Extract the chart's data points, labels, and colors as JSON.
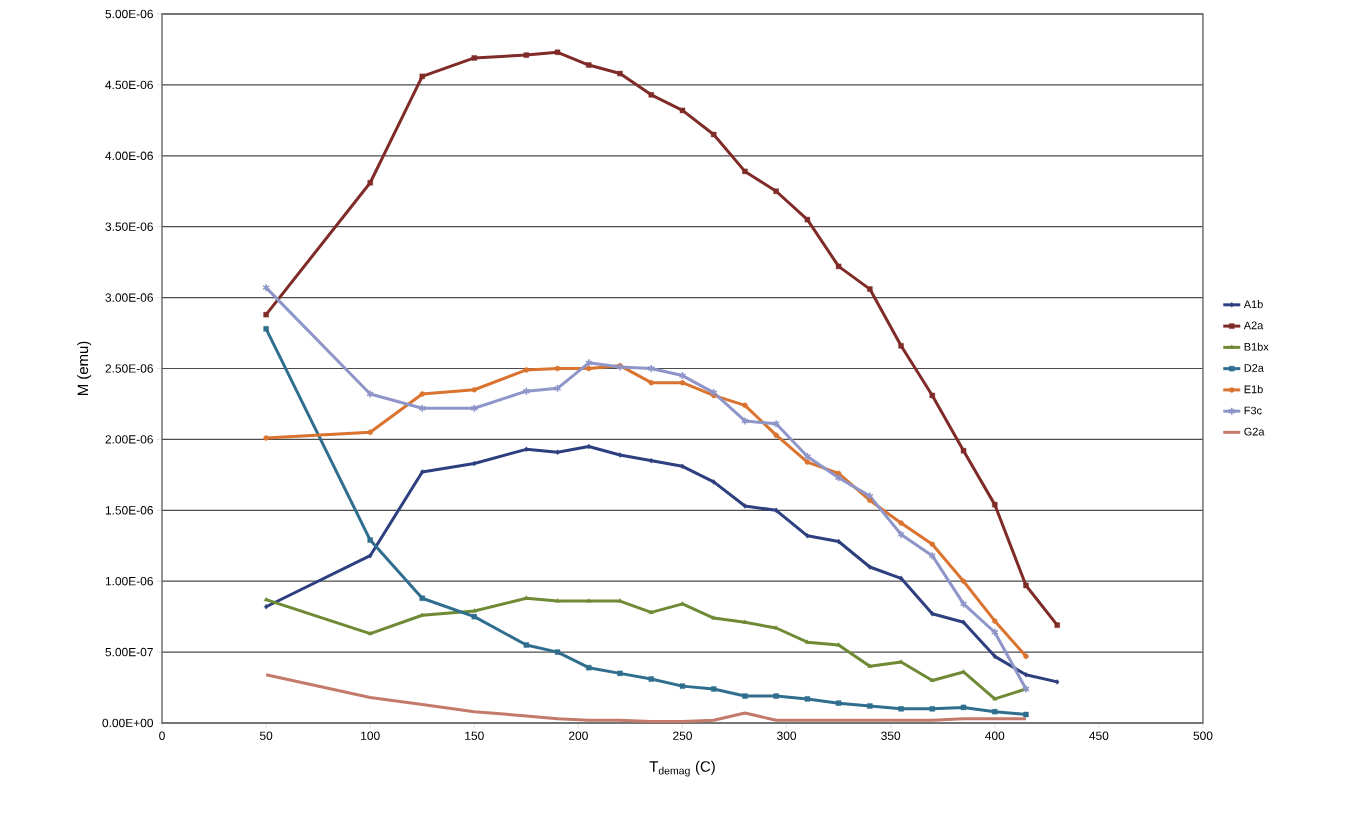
{
  "chart_data": {
    "type": "line",
    "xlabel": "T$_{demag}$ (C)",
    "ylabel": "M (emu)",
    "legend": "right",
    "grid": "y",
    "line_style": "solid",
    "xlim": [
      0,
      500
    ],
    "xticks": [
      0,
      50,
      100,
      150,
      200,
      250,
      300,
      350,
      400,
      450,
      500
    ],
    "ylim": [
      0,
      5e-06
    ],
    "yticks": [
      {
        "value": 0,
        "label": "0.00E+00"
      },
      {
        "value": 5e-07,
        "label": "5.00E-07"
      },
      {
        "value": 1e-06,
        "label": "1.00E-06"
      },
      {
        "value": 1.5e-06,
        "label": "1.50E-06"
      },
      {
        "value": 2e-06,
        "label": "2.00E-06"
      },
      {
        "value": 2.5e-06,
        "label": "2.50E-06"
      },
      {
        "value": 3e-06,
        "label": "3.00E-06"
      },
      {
        "value": 3.5e-06,
        "label": "3.50E-06"
      },
      {
        "value": 4e-06,
        "label": "4.00E-06"
      },
      {
        "value": 4.5e-06,
        "label": "4.50E-06"
      },
      {
        "value": 5e-06,
        "label": "5.00E-06"
      }
    ],
    "x": [
      50,
      100,
      125,
      150,
      175,
      190,
      205,
      220,
      235,
      250,
      265,
      280,
      295,
      310,
      325,
      340,
      355,
      370,
      385,
      400,
      415,
      430
    ],
    "series": [
      {
        "name": "A1b",
        "color": "#2e3f7f",
        "marker": "diamond",
        "values": [
          8.2e-07,
          1.18e-06,
          1.77e-06,
          1.83e-06,
          1.93e-06,
          1.91e-06,
          1.95e-06,
          1.89e-06,
          1.85e-06,
          1.81e-06,
          1.7e-06,
          1.53e-06,
          1.5e-06,
          1.32e-06,
          1.28e-06,
          1.1e-06,
          1.02e-06,
          7.7e-07,
          7.1e-07,
          4.7e-07,
          3.4e-07,
          2.9e-07
        ]
      },
      {
        "name": "A2a",
        "color": "#7f2b27",
        "marker": "square",
        "values": [
          2.88e-06,
          3.81e-06,
          4.56e-06,
          4.69e-06,
          4.71e-06,
          4.73e-06,
          4.64e-06,
          4.58e-06,
          4.43e-06,
          4.32e-06,
          4.15e-06,
          3.89e-06,
          3.75e-06,
          3.55e-06,
          3.22e-06,
          3.06e-06,
          2.66e-06,
          2.31e-06,
          1.92e-06,
          1.54e-06,
          9.7e-07,
          6.9e-07
        ]
      },
      {
        "name": "B1bx",
        "color": "#6f8a35",
        "marker": "triangle",
        "values": [
          8.7e-07,
          6.3e-07,
          7.6e-07,
          7.9e-07,
          8.8e-07,
          8.6e-07,
          8.6e-07,
          8.6e-07,
          7.8e-07,
          8.4e-07,
          7.4e-07,
          7.1e-07,
          6.7e-07,
          5.7e-07,
          5.5e-07,
          4e-07,
          4.3e-07,
          3e-07,
          3.6e-07,
          1.7e-07,
          2.4e-07,
          null
        ]
      },
      {
        "name": "D2a",
        "color": "#2f6e8e",
        "marker": "square",
        "values": [
          2.78e-06,
          1.29e-06,
          8.8e-07,
          7.5e-07,
          5.5e-07,
          5e-07,
          3.9e-07,
          3.5e-07,
          3.1e-07,
          2.6e-07,
          2.4e-07,
          1.9e-07,
          1.9e-07,
          1.7e-07,
          1.4e-07,
          1.2e-07,
          1e-07,
          1e-07,
          1.1e-07,
          8e-08,
          6e-08,
          null
        ]
      },
      {
        "name": "E1b",
        "color": "#d9732f",
        "marker": "circle",
        "values": [
          2.01e-06,
          2.05e-06,
          2.32e-06,
          2.35e-06,
          2.49e-06,
          2.5e-06,
          2.5e-06,
          2.52e-06,
          2.4e-06,
          2.4e-06,
          2.31e-06,
          2.24e-06,
          2.03e-06,
          1.84e-06,
          1.76e-06,
          1.57e-06,
          1.41e-06,
          1.26e-06,
          1e-06,
          7.2e-07,
          4.7e-07,
          null
        ]
      },
      {
        "name": "F3c",
        "color": "#8e95c8",
        "marker": "cross",
        "values": [
          3.07e-06,
          2.32e-06,
          2.22e-06,
          2.22e-06,
          2.34e-06,
          2.36e-06,
          2.54e-06,
          2.51e-06,
          2.5e-06,
          2.45e-06,
          2.33e-06,
          2.13e-06,
          2.11e-06,
          1.88e-06,
          1.73e-06,
          1.6e-06,
          1.33e-06,
          1.18e-06,
          8.4e-07,
          6.4e-07,
          2.4e-07,
          null
        ]
      },
      {
        "name": "G2a",
        "color": "#c47a6a",
        "marker": "none",
        "values": [
          3.4e-07,
          1.8e-07,
          1.3e-07,
          8e-08,
          5e-08,
          3e-08,
          2e-08,
          2e-08,
          1e-08,
          1e-08,
          2e-08,
          7e-08,
          2e-08,
          2e-08,
          2e-08,
          2e-08,
          2e-08,
          2e-08,
          3e-08,
          3e-08,
          3e-08,
          null
        ]
      }
    ]
  }
}
